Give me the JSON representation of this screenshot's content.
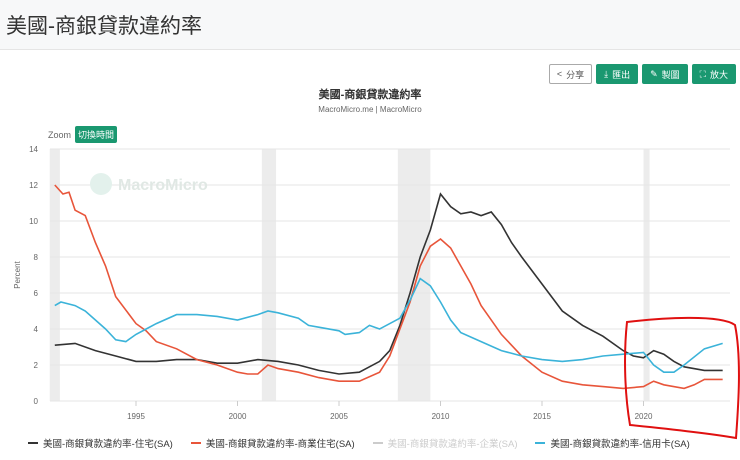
{
  "header": {
    "title": "美國-商銀貸款違約率"
  },
  "toolbar": {
    "share": "分享",
    "export": "匯出",
    "edit": "製圖",
    "expand": "放大"
  },
  "zoom": {
    "label": "Zoom",
    "toggle": "切換時間"
  },
  "watermark": "MacroMicro",
  "chart_data": {
    "type": "line",
    "title": "美國-商銀貸款違約率",
    "subtitle": "MacroMicro.me | MacroMicro",
    "ylabel": "Percent",
    "xlabel": "",
    "ylim": [
      0,
      14
    ],
    "xlim": [
      1990.75,
      2024
    ],
    "yticks": [
      "0",
      "2",
      "4",
      "6",
      "8",
      "10",
      "12",
      "14"
    ],
    "xticks": [
      "1995",
      "2000",
      "2005",
      "2010",
      "2015",
      "2020"
    ],
    "recessions": [
      [
        1990.75,
        1991.25
      ],
      [
        2001.2,
        2001.9
      ],
      [
        2007.9,
        2009.5
      ],
      [
        2020.0,
        2020.3
      ]
    ],
    "series": [
      {
        "name": "美國-商銀貸款違約率-住宅(SA)",
        "color": "#333333",
        "visible": true,
        "x": [
          1991,
          1992,
          1993,
          1994,
          1995,
          1996,
          1997,
          1998,
          1999,
          2000,
          2001,
          2002,
          2003,
          2004,
          2005,
          2006,
          2007,
          2007.5,
          2008,
          2008.5,
          2009,
          2009.5,
          2010,
          2010.5,
          2011,
          2011.5,
          2012,
          2012.5,
          2013,
          2013.5,
          2014,
          2015,
          2016,
          2017,
          2018,
          2019,
          2019.5,
          2020,
          2020.5,
          2021,
          2021.5,
          2022,
          2023,
          2023.9
        ],
        "values": [
          3.1,
          3.2,
          2.8,
          2.5,
          2.2,
          2.2,
          2.3,
          2.3,
          2.1,
          2.1,
          2.3,
          2.2,
          2.0,
          1.7,
          1.5,
          1.6,
          2.2,
          2.8,
          4.2,
          6,
          8,
          9.5,
          11.5,
          10.8,
          10.4,
          10.5,
          10.3,
          10.5,
          9.8,
          8.8,
          8.0,
          6.5,
          5.0,
          4.2,
          3.6,
          2.8,
          2.5,
          2.4,
          2.8,
          2.6,
          2.2,
          1.9,
          1.7,
          1.7
        ]
      },
      {
        "name": "美國-商銀貸款違約率-商業住宅(SA)",
        "color": "#e8553a",
        "visible": true,
        "x": [
          1991,
          1991.4,
          1991.7,
          1992,
          1992.5,
          1993,
          1993.5,
          1994,
          1995,
          1995.5,
          1996,
          1997,
          1998,
          1999,
          2000,
          2000.5,
          2001,
          2001.5,
          2002,
          2003,
          2004,
          2005,
          2006,
          2007,
          2007.5,
          2008,
          2008.5,
          2009,
          2009.5,
          2010,
          2010.5,
          2011,
          2011.5,
          2012,
          2013,
          2014,
          2015,
          2016,
          2017,
          2018,
          2019,
          2020,
          2020.5,
          2021,
          2022,
          2022.5,
          2023,
          2023.9
        ],
        "values": [
          12,
          11.5,
          11.6,
          10.6,
          10.3,
          8.8,
          7.5,
          5.8,
          4.3,
          3.9,
          3.3,
          2.9,
          2.3,
          2.0,
          1.6,
          1.5,
          1.5,
          2.0,
          1.8,
          1.6,
          1.3,
          1.1,
          1.1,
          1.6,
          2.5,
          4,
          5.5,
          7.5,
          8.6,
          9.0,
          8.5,
          7.5,
          6.5,
          5.3,
          3.7,
          2.5,
          1.6,
          1.1,
          0.9,
          0.8,
          0.7,
          0.8,
          1.1,
          0.9,
          0.7,
          0.9,
          1.2,
          1.2
        ]
      },
      {
        "name": "美國-商銀貸款違約率-企業(SA)",
        "color": "#cccccc",
        "visible": false,
        "x": [],
        "values": []
      },
      {
        "name": "美國-商銀貸款違約率-信用卡(SA)",
        "color": "#3bb3d9",
        "visible": true,
        "x": [
          1991,
          1991.3,
          1992,
          1992.5,
          1993,
          1993.5,
          1994,
          1994.5,
          1995,
          1995.5,
          1996,
          1997,
          1998,
          1999,
          2000,
          2001,
          2001.5,
          2002,
          2003,
          2003.5,
          2004,
          2005,
          2005.3,
          2006,
          2006.5,
          2007,
          2008,
          2008.5,
          2009,
          2009.5,
          2010,
          2010.5,
          2011,
          2012,
          2013,
          2014,
          2015,
          2016,
          2017,
          2018,
          2019,
          2020,
          2020.5,
          2021,
          2021.5,
          2022,
          2023,
          2023.9
        ],
        "values": [
          5.3,
          5.5,
          5.3,
          5.0,
          4.5,
          4.0,
          3.4,
          3.3,
          3.7,
          4.0,
          4.3,
          4.8,
          4.8,
          4.7,
          4.5,
          4.8,
          5.0,
          4.9,
          4.6,
          4.2,
          4.1,
          3.9,
          3.7,
          3.8,
          4.2,
          4.0,
          4.6,
          5.6,
          6.8,
          6.4,
          5.5,
          4.5,
          3.8,
          3.3,
          2.8,
          2.5,
          2.3,
          2.2,
          2.3,
          2.5,
          2.6,
          2.7,
          2.0,
          1.6,
          1.6,
          2.0,
          2.9,
          3.2
        ]
      }
    ]
  }
}
